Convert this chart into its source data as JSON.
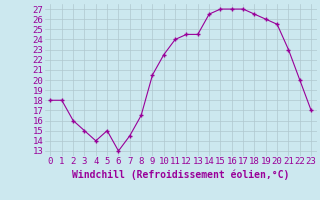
{
  "x": [
    0,
    1,
    2,
    3,
    4,
    5,
    6,
    7,
    8,
    9,
    10,
    11,
    12,
    13,
    14,
    15,
    16,
    17,
    18,
    19,
    20,
    21,
    22,
    23
  ],
  "y": [
    18,
    18,
    16,
    15,
    14,
    15,
    13,
    14.5,
    16.5,
    20.5,
    22.5,
    24,
    24.5,
    24.5,
    26.5,
    27,
    27,
    27,
    26.5,
    26,
    25.5,
    23,
    20,
    17
  ],
  "line_color": "#990099",
  "marker": "+",
  "bg_color": "#cce8ef",
  "grid_color": "#b0c8cf",
  "xlabel": "Windchill (Refroidissement éolien,°C)",
  "yticks": [
    13,
    14,
    15,
    16,
    17,
    18,
    19,
    20,
    21,
    22,
    23,
    24,
    25,
    26,
    27
  ],
  "ylim": [
    12.5,
    27.5
  ],
  "xlim": [
    -0.5,
    23.5
  ],
  "xlabel_color": "#990099",
  "tick_color": "#990099",
  "label_fontsize": 7,
  "tick_fontsize": 6.5
}
